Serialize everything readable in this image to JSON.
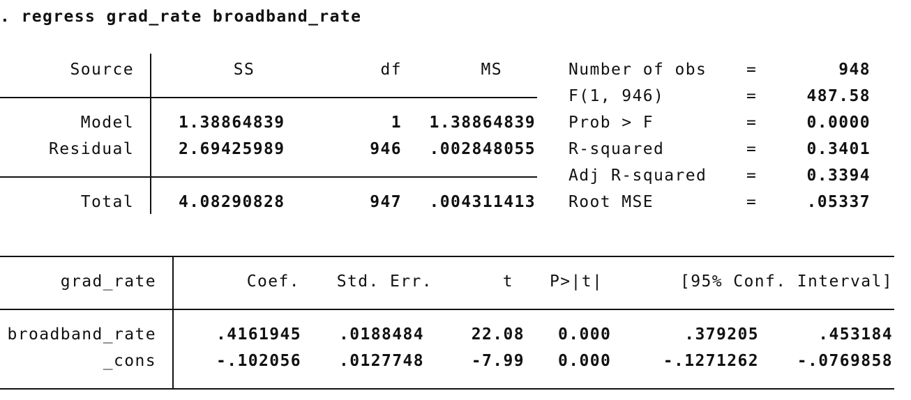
{
  "command": ". regress grad_rate broadband_rate",
  "anova": {
    "headers": {
      "source": "Source",
      "ss": "SS",
      "df": "df",
      "ms": "MS"
    },
    "rows": [
      {
        "source": "Model",
        "ss": "1.38864839",
        "df": "1",
        "ms": "1.38864839"
      },
      {
        "source": "Residual",
        "ss": "2.69425989",
        "df": "946",
        "ms": ".002848055"
      },
      {
        "source": "Total",
        "ss": "4.08290828",
        "df": "947",
        "ms": ".004311413"
      }
    ]
  },
  "stats": [
    {
      "label": "Number of obs",
      "eq": "=",
      "value": "948"
    },
    {
      "label": "F(1, 946)",
      "eq": "=",
      "value": "487.58"
    },
    {
      "label": "Prob > F",
      "eq": "=",
      "value": "0.0000"
    },
    {
      "label": "R-squared",
      "eq": "=",
      "value": "0.3401"
    },
    {
      "label": "Adj R-squared",
      "eq": "=",
      "value": "0.3394"
    },
    {
      "label": "Root MSE",
      "eq": "=",
      "value": ".05337"
    }
  ],
  "coef": {
    "headers": {
      "var": "grad_rate",
      "coef": "Coef.",
      "se": "Std. Err.",
      "t": "t",
      "p": "P>|t|",
      "ci": "[95% Conf. Interval]"
    },
    "rows": [
      {
        "var": "broadband_rate",
        "coef": ".4161945",
        "se": ".0188484",
        "t": "22.08",
        "p": "0.000",
        "lo": ".379205",
        "hi": ".453184"
      },
      {
        "var": "_cons",
        "coef": "-.102056",
        "se": ".0127748",
        "t": "-7.99",
        "p": "0.000",
        "lo": "-.1271262",
        "hi": "-.0769858"
      }
    ]
  }
}
